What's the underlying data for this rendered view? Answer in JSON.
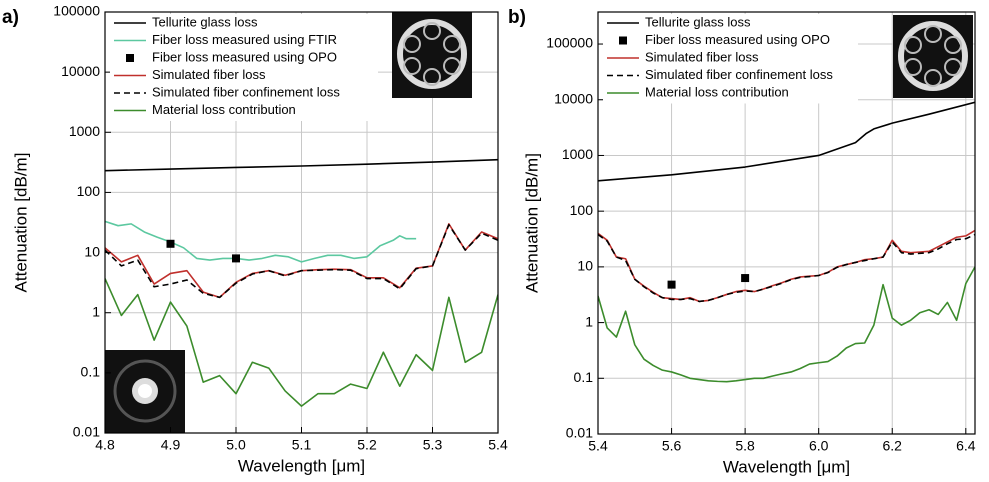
{
  "chart_data": [
    {
      "type": "line",
      "panel_label": "a)",
      "xlabel": "Wavelength [μm]",
      "ylabel": "Attenuation [dB/m]",
      "log_y": true,
      "grid": true,
      "legend": "upper left",
      "xlim": [
        4.8,
        5.4
      ],
      "ylim": [
        0.01,
        100000
      ],
      "xticks": [
        4.8,
        4.9,
        {
          "value": 5,
          "label": "5.0"
        },
        5.1,
        5.2,
        5.3,
        5.4
      ],
      "yticks": [
        0.01,
        0.1,
        1,
        10,
        100,
        1000,
        10000,
        100000
      ],
      "series": [
        {
          "name": "Tellurite glass loss",
          "color": "#000000",
          "x": [
            4.8,
            4.9,
            5.0,
            5.1,
            5.2,
            5.3,
            5.4
          ],
          "values": [
            230,
            245,
            260,
            275,
            295,
            320,
            350
          ]
        },
        {
          "name": "Fiber loss measured using FTIR",
          "color": "#5cc8a0",
          "x": [
            4.8,
            4.82,
            4.84,
            4.86,
            4.88,
            4.9,
            4.92,
            4.94,
            4.96,
            4.98,
            5.0,
            5.02,
            5.04,
            5.06,
            5.08,
            5.1,
            5.12,
            5.14,
            5.16,
            5.18,
            5.2,
            5.22,
            5.24,
            5.25,
            5.26,
            5.275
          ],
          "values": [
            33,
            28,
            30,
            22,
            18,
            15,
            12,
            8,
            7.5,
            8,
            8,
            7.5,
            8,
            9,
            8.5,
            7,
            8,
            9,
            9,
            8,
            8.5,
            13,
            16,
            19,
            17,
            17
          ]
        },
        {
          "name": "Fiber loss measured using OPO",
          "color": "#000000",
          "mode": "markers",
          "x": [
            4.9,
            5.0
          ],
          "values": [
            14,
            8
          ]
        },
        {
          "name": "Simulated fiber loss",
          "color": "#c0302c",
          "x": [
            4.8,
            4.825,
            4.85,
            4.875,
            4.9,
            4.925,
            4.95,
            4.975,
            5.0,
            5.025,
            5.05,
            5.075,
            5.1,
            5.125,
            5.15,
            5.175,
            5.2,
            5.225,
            5.25,
            5.275,
            5.3,
            5.325,
            5.35,
            5.375,
            5.4
          ],
          "values": [
            12,
            7,
            9,
            3,
            4.5,
            5,
            2.2,
            1.8,
            3.2,
            4.5,
            5,
            4.2,
            5,
            5.2,
            5.3,
            5.2,
            3.8,
            3.8,
            2.6,
            5.5,
            6,
            30,
            11,
            22,
            17
          ]
        },
        {
          "name": "Simulated fiber confinement loss",
          "color": "#000000",
          "dashed": true,
          "x": [
            4.8,
            4.825,
            4.85,
            4.875,
            4.9,
            4.925,
            4.95,
            4.975,
            5.0,
            5.025,
            5.05,
            5.075,
            5.1,
            5.125,
            5.15,
            5.175,
            5.2,
            5.225,
            5.25,
            5.275,
            5.3,
            5.325,
            5.35,
            5.375,
            5.4
          ],
          "values": [
            11,
            6,
            7.5,
            2.7,
            3,
            3.5,
            2.1,
            1.8,
            3.1,
            4.4,
            5,
            4.1,
            5,
            5.1,
            5.2,
            5.1,
            3.7,
            3.7,
            2.5,
            5.4,
            6,
            29,
            11,
            21,
            16
          ]
        },
        {
          "name": "Material loss contribution",
          "color": "#3c8c2c",
          "x": [
            4.8,
            4.825,
            4.85,
            4.875,
            4.9,
            4.925,
            4.95,
            4.975,
            5.0,
            5.025,
            5.05,
            5.075,
            5.1,
            5.125,
            5.15,
            5.175,
            5.2,
            5.225,
            5.25,
            5.275,
            5.3,
            5.325,
            5.35,
            5.375,
            5.4
          ],
          "values": [
            3.7,
            0.9,
            2,
            0.35,
            1.5,
            0.6,
            0.07,
            0.09,
            0.045,
            0.15,
            0.12,
            0.05,
            0.028,
            0.045,
            0.045,
            0.065,
            0.055,
            0.22,
            0.06,
            0.2,
            0.11,
            1.8,
            0.15,
            0.22,
            2
          ]
        }
      ]
    },
    {
      "type": "line",
      "panel_label": "b)",
      "xlabel": "Wavelength [μm]",
      "ylabel": "Attenuation [dB/m]",
      "log_y": true,
      "grid": true,
      "legend": "upper left",
      "xlim": [
        5.4,
        6.425
      ],
      "ylim": [
        0.01,
        376000
      ],
      "xticks": [
        5.4,
        5.6,
        5.8,
        {
          "value": 6,
          "label": "6.0"
        },
        6.2,
        6.4
      ],
      "yticks": [
        0.01,
        0.1,
        1,
        10,
        100,
        1000,
        10000,
        100000
      ],
      "series": [
        {
          "name": "Tellurite glass loss",
          "color": "#000000",
          "x": [
            5.4,
            5.6,
            5.8,
            6.0,
            6.1,
            6.13,
            6.15,
            6.2,
            6.3,
            6.425
          ],
          "values": [
            350,
            450,
            620,
            1000,
            1700,
            2500,
            3000,
            3800,
            5500,
            9000
          ]
        },
        {
          "name": "Fiber loss measured using OPO",
          "color": "#000000",
          "mode": "markers",
          "x": [
            5.6,
            5.8
          ],
          "values": [
            4.8,
            6.3
          ]
        },
        {
          "name": "Simulated fiber loss",
          "color": "#c0302c",
          "x": [
            5.4,
            5.425,
            5.45,
            5.475,
            5.5,
            5.525,
            5.55,
            5.575,
            5.6,
            5.625,
            5.65,
            5.675,
            5.7,
            5.725,
            5.75,
            5.775,
            5.8,
            5.825,
            5.85,
            5.875,
            5.9,
            5.925,
            5.95,
            5.975,
            6.0,
            6.025,
            6.05,
            6.075,
            6.1,
            6.125,
            6.15,
            6.175,
            6.2,
            6.225,
            6.25,
            6.275,
            6.3,
            6.325,
            6.35,
            6.375,
            6.4,
            6.425
          ],
          "values": [
            40,
            30,
            15,
            14,
            6,
            4.5,
            3.5,
            2.8,
            2.7,
            2.6,
            2.8,
            2.4,
            2.5,
            2.8,
            3.2,
            3.6,
            3.8,
            3.6,
            4,
            4.6,
            5.2,
            6,
            6.6,
            6.8,
            7,
            8,
            10,
            11,
            12,
            13.5,
            14,
            15,
            30,
            19,
            18,
            18.5,
            19,
            23,
            28,
            34,
            36,
            45
          ]
        },
        {
          "name": "Simulated fiber confinement loss",
          "color": "#000000",
          "dashed": true,
          "x": [
            5.4,
            5.425,
            5.45,
            5.475,
            5.5,
            5.525,
            5.55,
            5.575,
            5.6,
            5.625,
            5.65,
            5.675,
            5.7,
            5.725,
            5.75,
            5.775,
            5.8,
            5.825,
            5.85,
            5.875,
            5.9,
            5.925,
            5.95,
            5.975,
            6.0,
            6.025,
            6.05,
            6.075,
            6.1,
            6.125,
            6.15,
            6.175,
            6.2,
            6.225,
            6.25,
            6.275,
            6.3,
            6.325,
            6.35,
            6.375,
            6.4,
            6.425
          ],
          "values": [
            38,
            29,
            15,
            13,
            6,
            4.4,
            3.4,
            2.8,
            2.6,
            2.6,
            2.7,
            2.4,
            2.5,
            2.8,
            3.2,
            3.5,
            3.7,
            3.6,
            4,
            4.5,
            5.1,
            5.9,
            6.5,
            6.7,
            7,
            7.9,
            9.8,
            11,
            12,
            13,
            14,
            15,
            28,
            18,
            17,
            17.5,
            18,
            21,
            26,
            31,
            32,
            38
          ]
        },
        {
          "name": "Material loss contribution",
          "color": "#3c8c2c",
          "x": [
            5.4,
            5.425,
            5.45,
            5.475,
            5.5,
            5.525,
            5.55,
            5.575,
            5.6,
            5.625,
            5.65,
            5.675,
            5.7,
            5.725,
            5.75,
            5.775,
            5.8,
            5.825,
            5.85,
            5.875,
            5.9,
            5.925,
            5.95,
            5.975,
            6.0,
            6.025,
            6.05,
            6.075,
            6.1,
            6.125,
            6.15,
            6.175,
            6.2,
            6.225,
            6.25,
            6.275,
            6.3,
            6.325,
            6.35,
            6.375,
            6.4,
            6.425
          ],
          "values": [
            3,
            0.8,
            0.55,
            1.6,
            0.4,
            0.22,
            0.17,
            0.14,
            0.13,
            0.115,
            0.1,
            0.095,
            0.09,
            0.088,
            0.087,
            0.09,
            0.095,
            0.1,
            0.1,
            0.11,
            0.12,
            0.13,
            0.15,
            0.18,
            0.19,
            0.2,
            0.25,
            0.35,
            0.42,
            0.43,
            0.9,
            4.8,
            1.2,
            0.9,
            1.1,
            1.5,
            1.7,
            1.4,
            2.3,
            1.1,
            5,
            10
          ]
        }
      ]
    }
  ]
}
